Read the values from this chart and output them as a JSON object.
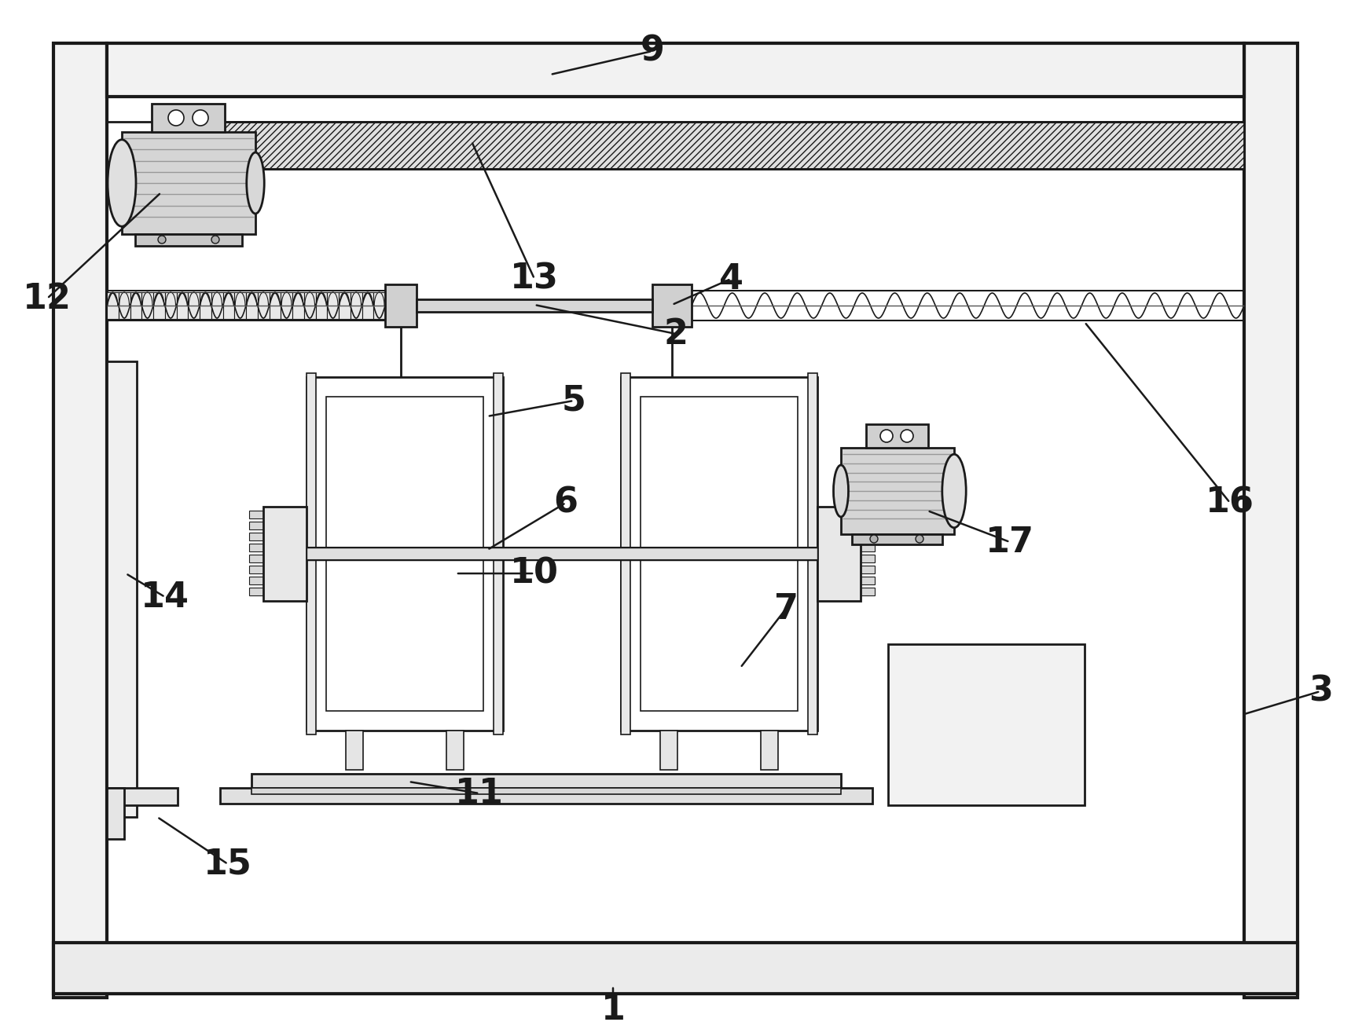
{
  "bg": "#ffffff",
  "lc": "#1a1a1a",
  "fc_frame": "#f5f5f5",
  "fc_gray": "#e8e8e8",
  "fc_mid": "#d0d0d0",
  "fc_dark": "#b8b8b8",
  "fc_motor": "#c0c0c0",
  "figsize": [
    17.19,
    13.15
  ],
  "dpi": 100
}
